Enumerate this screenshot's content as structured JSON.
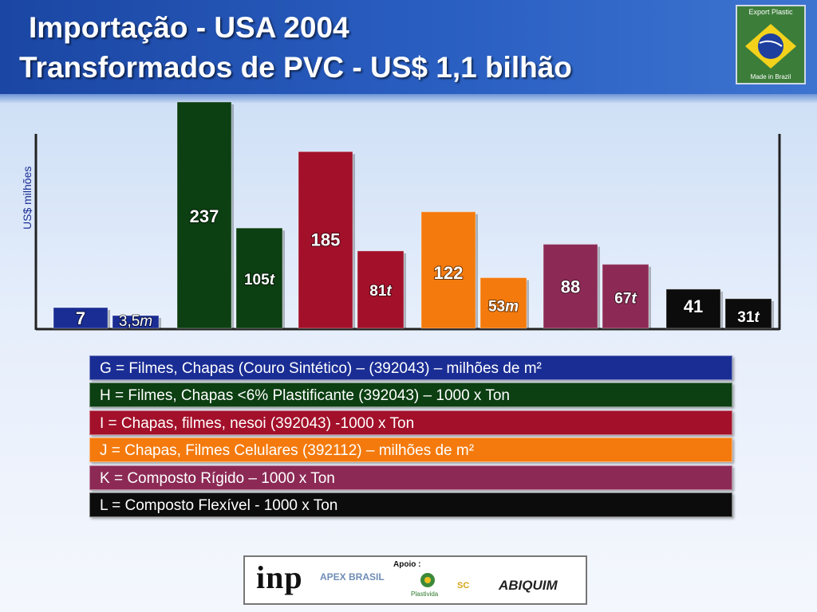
{
  "header": {
    "title_line1": "Importação - USA 2004",
    "title_line2": "Transformados de PVC - US$ 1,1 bilhão",
    "logo_text_top": "Export Plastic",
    "logo_text_bottom": "Made in Brazil"
  },
  "chart_data": {
    "type": "bar",
    "ylabel": "US$ milhões",
    "grid": false,
    "bars": [
      {
        "category": "G",
        "kind": "value",
        "value": 7,
        "label": "7",
        "color": "#1a2d94"
      },
      {
        "category": "G",
        "kind": "quantity",
        "value": 3.5,
        "label": "3,5",
        "unit": "m",
        "color": "#1a2d94"
      },
      {
        "category": "H",
        "kind": "value",
        "value": 237,
        "label": "237",
        "color": "#0c3f12"
      },
      {
        "category": "H",
        "kind": "quantity",
        "value": 105,
        "label": "105",
        "unit": "t",
        "color": "#0c3f12"
      },
      {
        "category": "I",
        "kind": "value",
        "value": 185,
        "label": "185",
        "color": "#a3102a"
      },
      {
        "category": "I",
        "kind": "quantity",
        "value": 81,
        "label": "81",
        "unit": "t",
        "color": "#a3102a"
      },
      {
        "category": "J",
        "kind": "value",
        "value": 122,
        "label": "122",
        "color": "#f47a0d"
      },
      {
        "category": "J",
        "kind": "quantity",
        "value": 53,
        "label": "53",
        "unit": "m",
        "color": "#f47a0d"
      },
      {
        "category": "K",
        "kind": "value",
        "value": 88,
        "label": "88",
        "color": "#8c2a55"
      },
      {
        "category": "K",
        "kind": "quantity",
        "value": 67,
        "label": "67",
        "unit": "t",
        "color": "#8c2a55"
      },
      {
        "category": "L",
        "kind": "value",
        "value": 41,
        "label": "41",
        "color": "#0c0c0c"
      },
      {
        "category": "L",
        "kind": "quantity",
        "value": 31,
        "label": "31",
        "unit": "t",
        "color": "#0c0c0c"
      }
    ],
    "legend": [
      {
        "text": "G = Filmes, Chapas (Couro Sintético) – (392043) – milhões de m²",
        "color": "#1a2d94"
      },
      {
        "text": "H = Filmes, Chapas  <6% Plastificante (392043) – 1000 x Ton",
        "color": "#0c3f12"
      },
      {
        "text": "I  = Chapas, filmes, nesoi (392043) -1000 x Ton",
        "color": "#a3102a"
      },
      {
        "text": "J = Chapas, Filmes Celulares (392112) – milhões de m²",
        "color": "#f47a0d"
      },
      {
        "text": "K = Composto Rígido – 1000 x Ton",
        "color": "#8c2a55"
      },
      {
        "text": "L = Composto Flexível -  1000 x Ton",
        "color": "#0c0c0c"
      }
    ]
  },
  "footer": {
    "inp": "inp",
    "apex": "APEX BRASIL",
    "apoio": "Apoio :",
    "plastivida": "Plastivida",
    "sc": "SC",
    "abiquim": "ABIQUIM"
  }
}
